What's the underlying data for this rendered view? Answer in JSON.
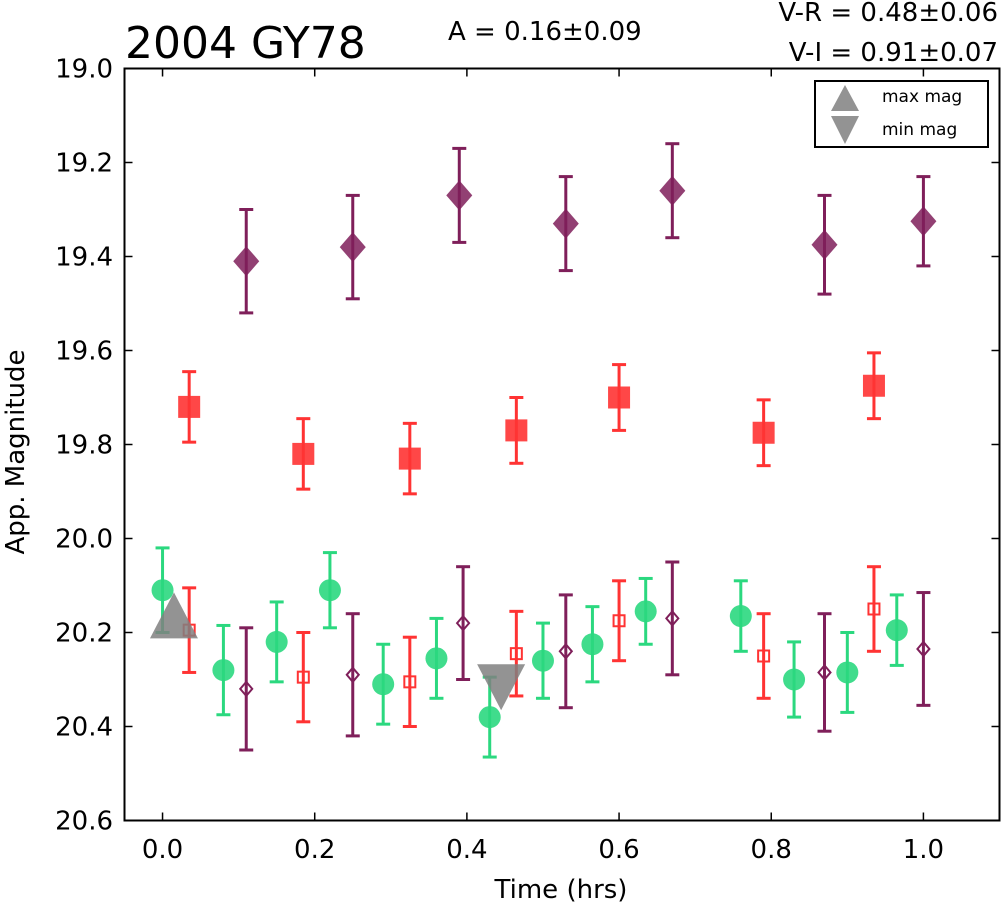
{
  "chart_data": {
    "type": "scatter",
    "title": "2004 GY78",
    "annotation": "A  = 0.16±0.09",
    "color_indices": [
      "V-R = 0.48±0.06",
      "V-I  = 0.91±0.07"
    ],
    "xlabel": "Time (hrs)",
    "ylabel": "App. Magnitude",
    "xlim": [
      -0.05,
      1.1
    ],
    "ylim": [
      20.6,
      19.0
    ],
    "y_inverted": true,
    "grid": false,
    "x_ticks": [
      "0.0",
      "0.2",
      "0.4",
      "0.6",
      "0.8",
      "1.0"
    ],
    "y_ticks": [
      "19.0",
      "19.2",
      "19.4",
      "19.6",
      "19.8",
      "20.0",
      "20.2",
      "20.4",
      "20.6"
    ],
    "legend": {
      "placement": "top-right",
      "entries": [
        {
          "label": "max mag",
          "marker": "triangle-up",
          "color": "#808080"
        },
        {
          "label": "min mag",
          "marker": "triangle-down",
          "color": "#808080"
        }
      ]
    },
    "series": [
      {
        "marker": "diamond-filled",
        "color": "#7f1f5a",
        "points": [
          {
            "x": 0.11,
            "y": 19.41,
            "err": 0.11
          },
          {
            "x": 0.25,
            "y": 19.38,
            "err": 0.11
          },
          {
            "x": 0.39,
            "y": 19.27,
            "err": 0.1
          },
          {
            "x": 0.53,
            "y": 19.33,
            "err": 0.1
          },
          {
            "x": 0.67,
            "y": 19.26,
            "err": 0.1
          },
          {
            "x": 0.87,
            "y": 19.375,
            "err": 0.105
          },
          {
            "x": 1.0,
            "y": 19.325,
            "err": 0.095
          }
        ]
      },
      {
        "marker": "square-filled",
        "color": "#ff3333",
        "points": [
          {
            "x": 0.035,
            "y": 19.72,
            "err": 0.075
          },
          {
            "x": 0.185,
            "y": 19.82,
            "err": 0.075
          },
          {
            "x": 0.325,
            "y": 19.83,
            "err": 0.075
          },
          {
            "x": 0.465,
            "y": 19.77,
            "err": 0.07
          },
          {
            "x": 0.6,
            "y": 19.7,
            "err": 0.07
          },
          {
            "x": 0.79,
            "y": 19.775,
            "err": 0.07
          },
          {
            "x": 0.935,
            "y": 19.675,
            "err": 0.07
          }
        ]
      },
      {
        "marker": "circle-filled",
        "color": "#2bd87f",
        "points": [
          {
            "x": 0.0,
            "y": 20.11,
            "err": 0.09
          },
          {
            "x": 0.08,
            "y": 20.28,
            "err": 0.095
          },
          {
            "x": 0.15,
            "y": 20.22,
            "err": 0.085
          },
          {
            "x": 0.22,
            "y": 20.11,
            "err": 0.08
          },
          {
            "x": 0.29,
            "y": 20.31,
            "err": 0.085
          },
          {
            "x": 0.36,
            "y": 20.255,
            "err": 0.085
          },
          {
            "x": 0.43,
            "y": 20.38,
            "err": 0.085
          },
          {
            "x": 0.5,
            "y": 20.26,
            "err": 0.08
          },
          {
            "x": 0.565,
            "y": 20.225,
            "err": 0.08
          },
          {
            "x": 0.635,
            "y": 20.155,
            "err": 0.07
          },
          {
            "x": 0.76,
            "y": 20.165,
            "err": 0.075
          },
          {
            "x": 0.83,
            "y": 20.3,
            "err": 0.08
          },
          {
            "x": 0.9,
            "y": 20.285,
            "err": 0.085
          },
          {
            "x": 0.965,
            "y": 20.195,
            "err": 0.075
          }
        ]
      },
      {
        "marker": "square-open",
        "color": "#ff3333",
        "points": [
          {
            "x": 0.035,
            "y": 20.195,
            "err": 0.09
          },
          {
            "x": 0.185,
            "y": 20.295,
            "err": 0.095
          },
          {
            "x": 0.325,
            "y": 20.305,
            "err": 0.095
          },
          {
            "x": 0.465,
            "y": 20.245,
            "err": 0.09
          },
          {
            "x": 0.6,
            "y": 20.175,
            "err": 0.085
          },
          {
            "x": 0.79,
            "y": 20.25,
            "err": 0.09
          },
          {
            "x": 0.935,
            "y": 20.15,
            "err": 0.09
          }
        ]
      },
      {
        "marker": "diamond-open",
        "color": "#7f1f5a",
        "points": [
          {
            "x": 0.11,
            "y": 20.32,
            "err": 0.13
          },
          {
            "x": 0.25,
            "y": 20.29,
            "err": 0.13
          },
          {
            "x": 0.395,
            "y": 20.18,
            "err": 0.12
          },
          {
            "x": 0.53,
            "y": 20.24,
            "err": 0.12
          },
          {
            "x": 0.67,
            "y": 20.17,
            "err": 0.12
          },
          {
            "x": 0.87,
            "y": 20.285,
            "err": 0.125
          },
          {
            "x": 1.0,
            "y": 20.235,
            "err": 0.12
          }
        ]
      },
      {
        "marker": "triangle-up",
        "color": "#808080",
        "points": [
          {
            "x": 0.015,
            "y": 20.17
          }
        ]
      },
      {
        "marker": "triangle-down",
        "color": "#808080",
        "points": [
          {
            "x": 0.445,
            "y": 20.31
          }
        ]
      }
    ]
  }
}
